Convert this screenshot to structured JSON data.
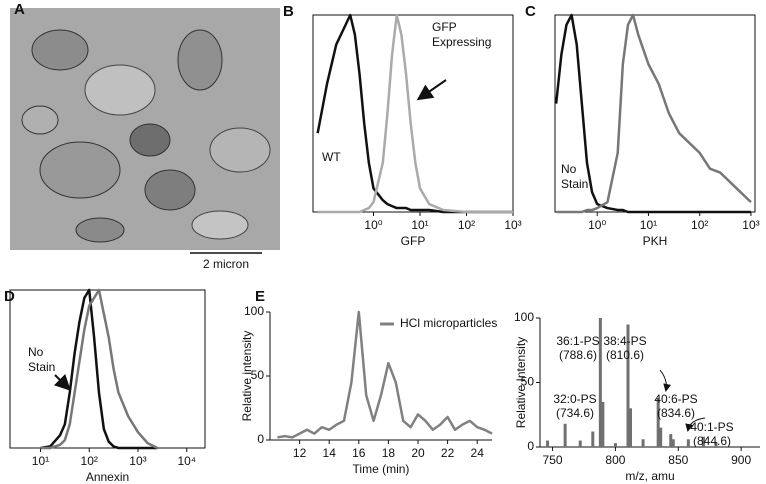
{
  "figure_a": {
    "panel": "A",
    "scale_bar": "2 micron"
  },
  "chart_data": [
    {
      "type": "line",
      "panel": "B",
      "xlabel": "GFP",
      "xscale": "log",
      "xlim": [
        0.05,
        1000
      ],
      "ylim": [
        0,
        100
      ],
      "xticks": [
        {
          "value": 1,
          "label": "10⁰"
        },
        {
          "value": 10,
          "label": "10¹"
        },
        {
          "value": 100,
          "label": "10²"
        },
        {
          "value": 1000,
          "label": "10³"
        }
      ],
      "x": [
        0.063,
        0.1,
        0.158,
        0.251,
        0.316,
        0.398,
        0.501,
        0.631,
        0.794,
        1,
        1.585,
        1.995,
        2.512,
        3.162,
        3.981,
        5.012,
        6.31,
        7.943,
        10,
        15.85,
        31.62,
        100,
        316.2,
        1000
      ],
      "series": [
        {
          "name": "WT",
          "color": "#111111",
          "values": [
            40,
            65,
            85,
            95,
            100,
            90,
            70,
            45,
            25,
            12,
            6,
            4,
            3,
            2,
            2,
            2,
            1,
            1,
            1,
            1,
            0,
            0,
            0,
            0
          ]
        },
        {
          "name": "GFP Expressing",
          "color": "#aaaaaa",
          "values": [
            0,
            0,
            0,
            0,
            0,
            0,
            0,
            1,
            2,
            5,
            25,
            50,
            80,
            100,
            90,
            70,
            45,
            25,
            12,
            4,
            1,
            0,
            0,
            0
          ]
        }
      ]
    },
    {
      "type": "line",
      "panel": "C",
      "xlabel": "PKH",
      "xscale": "log",
      "xlim": [
        0.15,
        1200
      ],
      "ylim": [
        0,
        100
      ],
      "xticks": [
        {
          "value": 1,
          "label": "10⁰"
        },
        {
          "value": 10,
          "label": "10¹"
        },
        {
          "value": 100,
          "label": "10²"
        },
        {
          "value": 1000,
          "label": "10³"
        }
      ],
      "x": [
        0.158,
        0.2,
        0.251,
        0.316,
        0.398,
        0.501,
        0.631,
        0.794,
        1,
        1.585,
        2.512,
        3.162,
        3.981,
        5.012,
        6.31,
        10,
        15.85,
        25.12,
        39.81,
        63.1,
        100,
        158.5,
        251.2,
        398.1,
        631,
        1000
      ],
      "series": [
        {
          "name": "No Stain",
          "color": "#111111",
          "values": [
            55,
            80,
            95,
            100,
            85,
            55,
            25,
            10,
            4,
            2,
            1,
            1,
            0,
            0,
            0,
            0,
            0,
            0,
            0,
            0,
            0,
            0,
            0,
            0,
            0,
            0
          ]
        },
        {
          "color": "#777777",
          "values": [
            0,
            0,
            0,
            0,
            0,
            0,
            1,
            1,
            2,
            5,
            30,
            75,
            95,
            100,
            90,
            75,
            65,
            50,
            40,
            35,
            30,
            22,
            20,
            15,
            10,
            5
          ]
        }
      ]
    },
    {
      "type": "line",
      "panel": "D",
      "xlabel": "Annexin",
      "xscale": "log",
      "xlim": [
        2.37,
        23700
      ],
      "ylim": [
        0,
        100
      ],
      "xticks": [
        {
          "value": 10,
          "label": "10¹"
        },
        {
          "value": 100,
          "label": "10²"
        },
        {
          "value": 1000,
          "label": "10³"
        },
        {
          "value": 10000,
          "label": "10⁴"
        }
      ],
      "x": [
        10,
        15.85,
        25.12,
        31.62,
        39.81,
        50.12,
        63.1,
        79.43,
        100,
        125.9,
        158.5,
        199.5,
        251.2,
        316.2,
        398.1,
        631,
        1000,
        1585,
        2512
      ],
      "series": [
        {
          "name": "No Stain",
          "color": "#111111",
          "values": [
            0,
            1,
            8,
            15,
            35,
            60,
            80,
            95,
            100,
            70,
            35,
            12,
            4,
            1,
            0,
            0,
            0,
            0,
            0
          ]
        },
        {
          "color": "#777777",
          "values": [
            0,
            0,
            2,
            5,
            15,
            35,
            55,
            75,
            90,
            95,
            100,
            85,
            70,
            50,
            35,
            20,
            10,
            3,
            0
          ]
        }
      ]
    },
    {
      "type": "line",
      "panel": "E",
      "xlabel": "Time (min)",
      "ylabel": "Relative intensity",
      "xlim": [
        10,
        25
      ],
      "ylim": [
        0,
        100
      ],
      "xticks": [
        12,
        14,
        16,
        18,
        20,
        22,
        24
      ],
      "yticks": [
        0,
        50,
        100
      ],
      "x": [
        10.5,
        11,
        11.5,
        12,
        12.5,
        13,
        13.5,
        14,
        14.5,
        15,
        15.5,
        16,
        16.5,
        17,
        17.5,
        18,
        18.5,
        19,
        19.5,
        20,
        20.5,
        21,
        21.5,
        22,
        22.5,
        23,
        23.5,
        24,
        24.5,
        25
      ],
      "series": [
        {
          "name": "HCl microparticles",
          "color": "#808080",
          "values": [
            2,
            3,
            2,
            5,
            8,
            5,
            10,
            8,
            12,
            15,
            45,
            100,
            35,
            15,
            35,
            60,
            45,
            15,
            10,
            20,
            15,
            8,
            12,
            18,
            8,
            12,
            15,
            10,
            8,
            5
          ]
        }
      ]
    },
    {
      "type": "spectrum",
      "xlabel": "m/z, amu",
      "ylabel": "Relative Intensity",
      "xlim": [
        740,
        915
      ],
      "ylim": [
        0,
        100
      ],
      "xticks": [
        750,
        800,
        850,
        900
      ],
      "yticks": [
        0,
        50,
        100
      ],
      "color": "#707070",
      "x": [
        746,
        760,
        772,
        782,
        788,
        790,
        800,
        810,
        812,
        822,
        834,
        836,
        844,
        846,
        858,
        870,
        880
      ],
      "values": [
        5,
        18,
        5,
        12,
        100,
        35,
        3,
        95,
        30,
        6,
        38,
        15,
        10,
        6,
        6,
        8,
        4
      ],
      "annotations": [
        {
          "name": "36:1-PS",
          "mass": "(788.6)"
        },
        {
          "name": "38:4-PS",
          "mass": "(810.6)"
        },
        {
          "name": "32:0-PS",
          "mass": "(734.6)"
        },
        {
          "name": "40:6-PS",
          "mass": "(834.6)"
        },
        {
          "name": "40:1-PS",
          "mass": "(844.6)"
        }
      ]
    }
  ]
}
